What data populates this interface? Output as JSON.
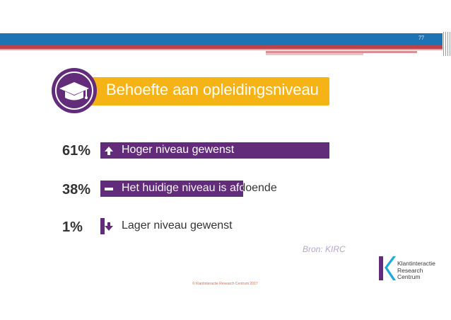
{
  "slide": {
    "page_number": "77",
    "title": "Behoefte aan opleidingsniveau",
    "source": "Bron: KIRC",
    "copyright": "© Klantinteractie Research Centrum 2017"
  },
  "rows": [
    {
      "percent": "61%",
      "label": "Hoger niveau gewenst",
      "value": 61,
      "icon": "arrow-up-icon"
    },
    {
      "percent": "38%",
      "label": "Het huidige niveau is afdoende",
      "value": 38,
      "icon": "minus-icon"
    },
    {
      "percent": "1%",
      "label": "Lager niveau gewenst",
      "value": 1,
      "icon": "arrow-down-icon"
    }
  ],
  "logo": {
    "line1": "Klantinteractie",
    "line2": "Research",
    "line3": "Centrum"
  },
  "colors": {
    "accent_purple": "#632c7a",
    "banner_yellow": "#f6b316",
    "header_blue": "#1d73b3",
    "header_red": "#b8434a"
  }
}
